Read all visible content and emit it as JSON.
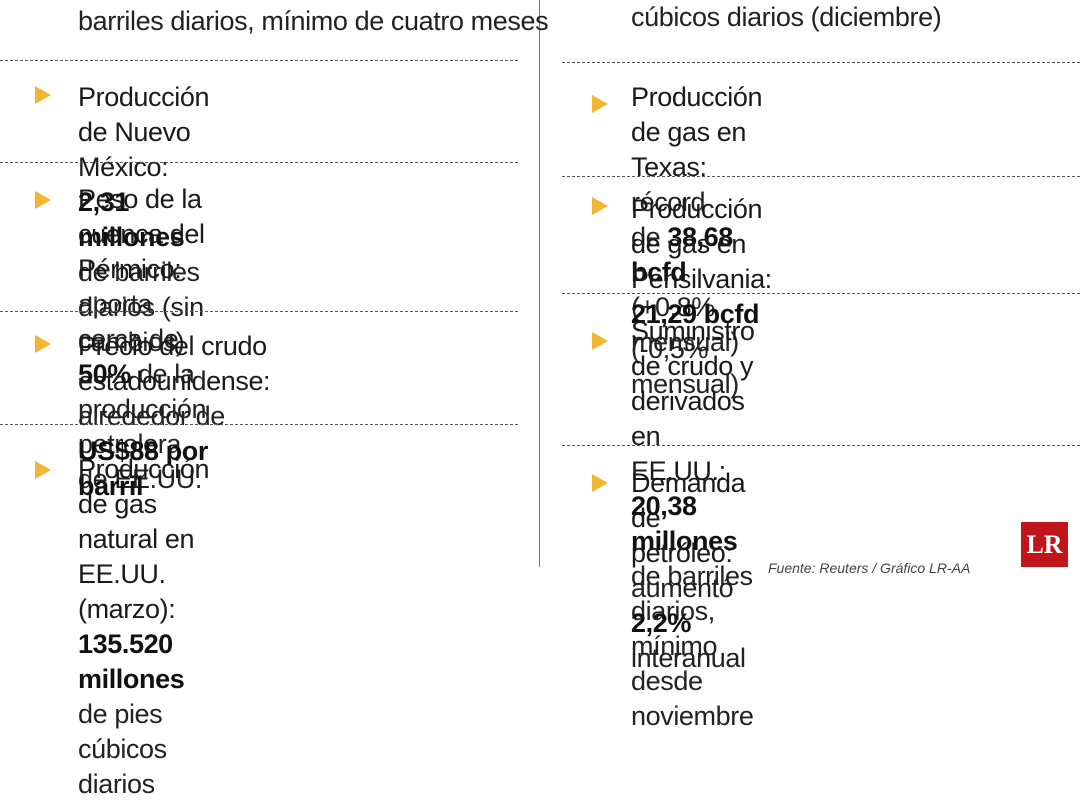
{
  "left": {
    "top_partial": "barriles diarios, mínimo de cuatro meses",
    "items": [
      {
        "line1": [
          {
            "t": "Producción de Nuevo México: ",
            "s": "t"
          },
          {
            "t": "2,31",
            "s": "b"
          }
        ],
        "line2": [
          {
            "t": "millones",
            "s": "b"
          },
          {
            "t": " de barriles diarios (sin cambios)",
            "s": "l"
          }
        ]
      },
      {
        "line1": [
          {
            "t": "Peso de la cuenca del Pérmico:",
            "s": "t"
          }
        ],
        "line2": [
          {
            "t": "aporta cerca de ",
            "s": "l"
          },
          {
            "t": "50%",
            "s": "b"
          },
          {
            "t": " de la",
            "s": "l"
          }
        ],
        "line3": [
          {
            "t": "producción petrolera de EE.UU.",
            "s": "l"
          }
        ]
      },
      {
        "line1": [
          {
            "t": "Precio del crudo estadounidense:",
            "s": "t"
          }
        ],
        "line2": [
          {
            "t": "alrededor de ",
            "s": "l"
          },
          {
            "t": "US$88 por barril",
            "s": "b"
          }
        ]
      },
      {
        "line1": [
          {
            "t": "Producción de gas natural en",
            "s": "t"
          }
        ],
        "line2": [
          {
            "t": "EE.UU. (marzo): ",
            "s": "t"
          },
          {
            "t": "135.520 millones",
            "s": "b"
          }
        ],
        "line3": [
          {
            "t": "de pies cúbicos diarios",
            "s": "l"
          }
        ]
      }
    ]
  },
  "right": {
    "top_partial": "cúbicos diarios (diciembre)",
    "items": [
      {
        "line1": [
          {
            "t": "Producción de gas en Texas: ",
            "s": "t"
          },
          {
            "t": "récord",
            "s": "l"
          }
        ],
        "line2": [
          {
            "t": "de ",
            "s": "l"
          },
          {
            "t": "38,68 bcfd",
            "s": "b"
          },
          {
            "t": " (+0,8% mensual)",
            "s": "l"
          }
        ]
      },
      {
        "line1": [
          {
            "t": "Producción de gas en Pensilvania:",
            "s": "t"
          }
        ],
        "line2": [
          {
            "t": "21,29 bcfd",
            "s": "b"
          },
          {
            "t": " (-0,5% mensual)",
            "s": "l"
          }
        ]
      },
      {
        "line1": [
          {
            "t": "Suministro de crudo y derivados en",
            "s": "t"
          }
        ],
        "line2": [
          {
            "t": "EE.UU.: ",
            "s": "t"
          },
          {
            "t": "20,38 millones",
            "s": "b"
          },
          {
            "t": " de barriles",
            "s": "l"
          }
        ],
        "line3": [
          {
            "t": "diarios, mínimo desde noviembre",
            "s": "l"
          }
        ]
      },
      {
        "line1": [
          {
            "t": "Demanda de petróleo:",
            "s": "t"
          }
        ],
        "line2": [
          {
            "t": "aumentó ",
            "s": "l"
          },
          {
            "t": "2,2%",
            "s": "b"
          },
          {
            "t": " interanual",
            "s": "l"
          }
        ]
      }
    ]
  },
  "logo": "LR",
  "source": "Fuente: Reuters / Gráfico LR-AA",
  "colors": {
    "bullet": "#f2b632",
    "logo_bg": "#c0151b",
    "divider": "#555555"
  }
}
